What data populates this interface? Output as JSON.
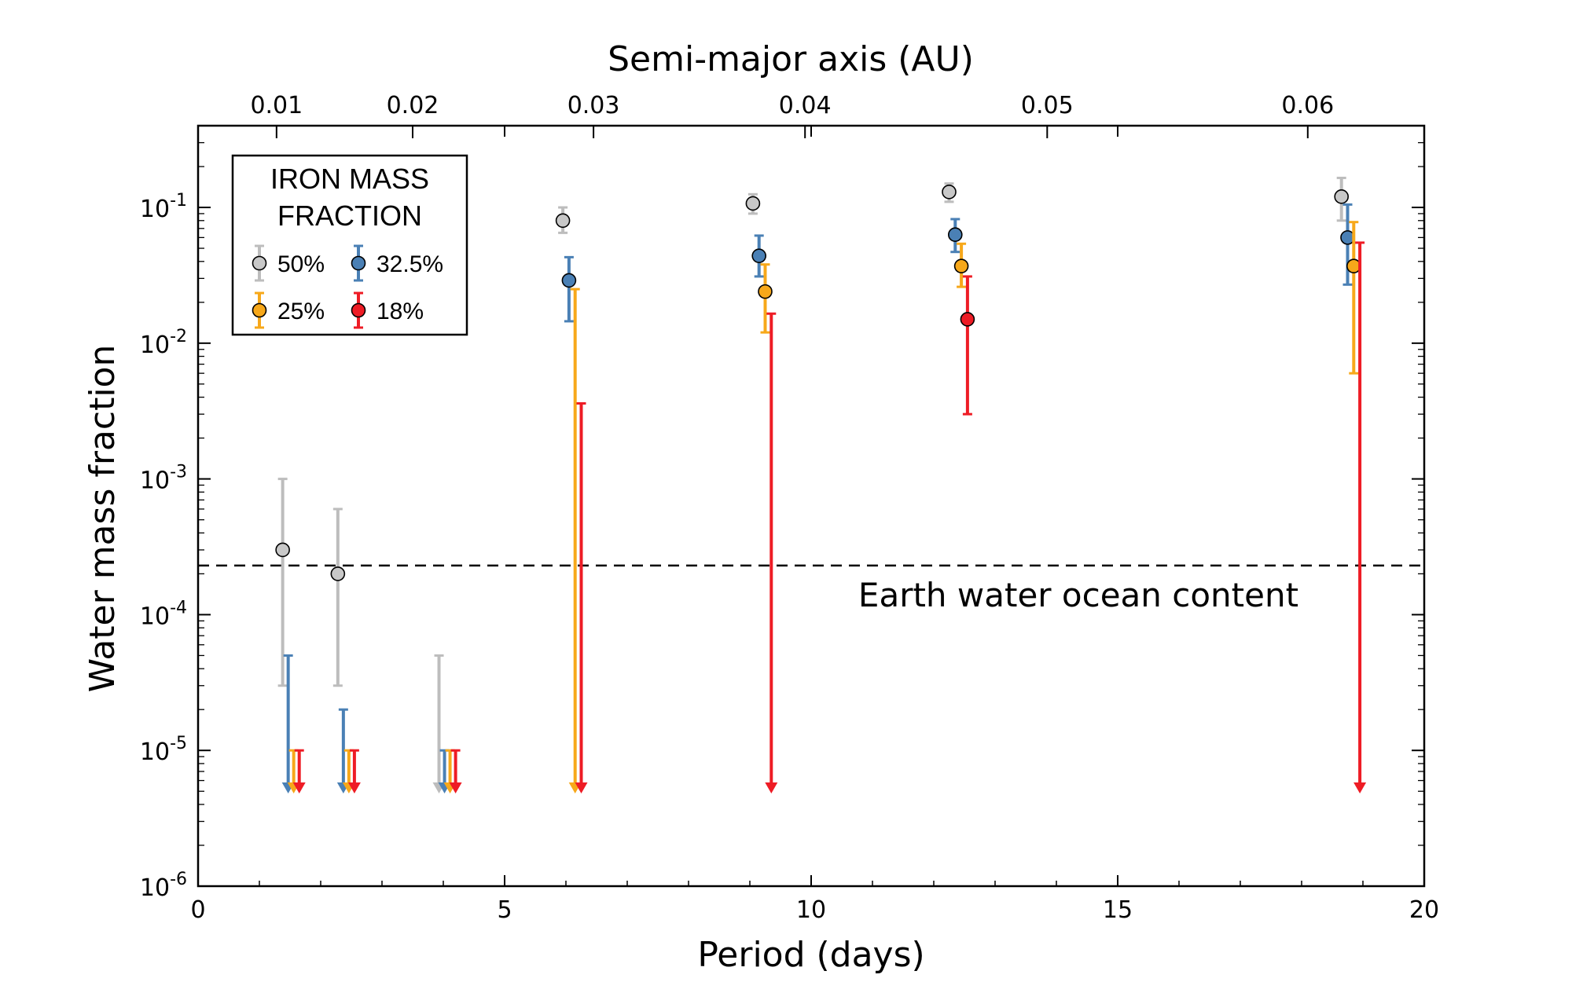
{
  "chart_data": {
    "type": "scatter",
    "title": "",
    "xlabel": "Period (days)",
    "ylabel": "Water mass fraction",
    "top_xlabel": "Semi-major axis (AU)",
    "xlim": [
      0,
      20
    ],
    "ylim": [
      1e-06,
      0.4
    ],
    "yscale": "log",
    "grid": false,
    "x_ticks": [
      {
        "value": 0,
        "label": "0"
      },
      {
        "value": 5,
        "label": "5"
      },
      {
        "value": 10,
        "label": "10"
      },
      {
        "value": 15,
        "label": "15"
      },
      {
        "value": 20,
        "label": "20"
      }
    ],
    "y_ticks": [
      {
        "value": 1e-06,
        "base": "10",
        "exp": "-6"
      },
      {
        "value": 1e-05,
        "base": "10",
        "exp": "-5"
      },
      {
        "value": 0.0001,
        "base": "10",
        "exp": "-4"
      },
      {
        "value": 0.001,
        "base": "10",
        "exp": "-3"
      },
      {
        "value": 0.01,
        "base": "10",
        "exp": "-2"
      },
      {
        "value": 0.1,
        "base": "10",
        "exp": "-1"
      }
    ],
    "top_ticks": [
      {
        "period": 1.28,
        "label": "0.01"
      },
      {
        "period": 3.5,
        "label": "0.02"
      },
      {
        "period": 6.45,
        "label": "0.03"
      },
      {
        "period": 9.9,
        "label": "0.04"
      },
      {
        "period": 13.85,
        "label": "0.05"
      },
      {
        "period": 18.1,
        "label": "0.06"
      }
    ],
    "reference_line": {
      "y": 0.00023,
      "label": "Earth water ocean content"
    },
    "legend": {
      "title_line1": "IRON MASS",
      "title_line2": "FRACTION",
      "position": "top-left"
    },
    "series": [
      {
        "name": "50%",
        "color": "#bdbdbd",
        "marker_fill": "#c8c8c8",
        "points": [
          {
            "x": 1.38,
            "y": 0.0003,
            "lo": 3e-05,
            "hi": 0.001
          },
          {
            "x": 2.28,
            "y": 0.0002,
            "lo": 3e-05,
            "hi": 0.0006
          },
          {
            "x": 5.95,
            "y": 0.08,
            "lo": 0.065,
            "hi": 0.1
          },
          {
            "x": 9.05,
            "y": 0.107,
            "lo": 0.09,
            "hi": 0.125
          },
          {
            "x": 12.25,
            "y": 0.13,
            "lo": 0.11,
            "hi": 0.15
          },
          {
            "x": 18.65,
            "y": 0.12,
            "lo": 0.08,
            "hi": 0.165
          }
        ],
        "upper_limits": [
          {
            "x": 3.93,
            "hi": 5e-05
          }
        ]
      },
      {
        "name": "32.5%",
        "color": "#4a80b5",
        "marker_fill": "#4a80b5",
        "points": [
          {
            "x": 6.05,
            "y": 0.029,
            "lo": 0.0145,
            "hi": 0.043
          },
          {
            "x": 9.15,
            "y": 0.044,
            "lo": 0.031,
            "hi": 0.062
          },
          {
            "x": 12.35,
            "y": 0.063,
            "lo": 0.047,
            "hi": 0.082
          },
          {
            "x": 18.75,
            "y": 0.06,
            "lo": 0.027,
            "hi": 0.105
          }
        ],
        "upper_limits": [
          {
            "x": 1.47,
            "hi": 5e-05
          },
          {
            "x": 2.37,
            "hi": 2e-05
          },
          {
            "x": 4.02,
            "hi": 1e-05
          }
        ]
      },
      {
        "name": "25%",
        "color": "#f7a81a",
        "marker_fill": "#f7a81a",
        "points": [
          {
            "x": 9.25,
            "y": 0.024,
            "lo": 0.012,
            "hi": 0.038
          },
          {
            "x": 12.45,
            "y": 0.037,
            "lo": 0.026,
            "hi": 0.054
          },
          {
            "x": 18.85,
            "y": 0.037,
            "lo": 0.006,
            "hi": 0.078
          }
        ],
        "upper_limits": [
          {
            "x": 1.56,
            "hi": 1e-05
          },
          {
            "x": 2.46,
            "hi": 1e-05
          },
          {
            "x": 4.11,
            "hi": 1e-05
          },
          {
            "x": 6.15,
            "hi": 0.025
          }
        ]
      },
      {
        "name": "18%",
        "color": "#ee1c25",
        "marker_fill": "#ee1c25",
        "points": [
          {
            "x": 12.55,
            "y": 0.015,
            "lo": 0.003,
            "hi": 0.031
          }
        ],
        "upper_limits": [
          {
            "x": 1.65,
            "hi": 1e-05
          },
          {
            "x": 2.55,
            "hi": 1e-05
          },
          {
            "x": 4.2,
            "hi": 1e-05
          },
          {
            "x": 6.25,
            "hi": 0.0036
          },
          {
            "x": 9.35,
            "hi": 0.0165
          },
          {
            "x": 18.95,
            "hi": 0.055
          }
        ]
      }
    ]
  }
}
